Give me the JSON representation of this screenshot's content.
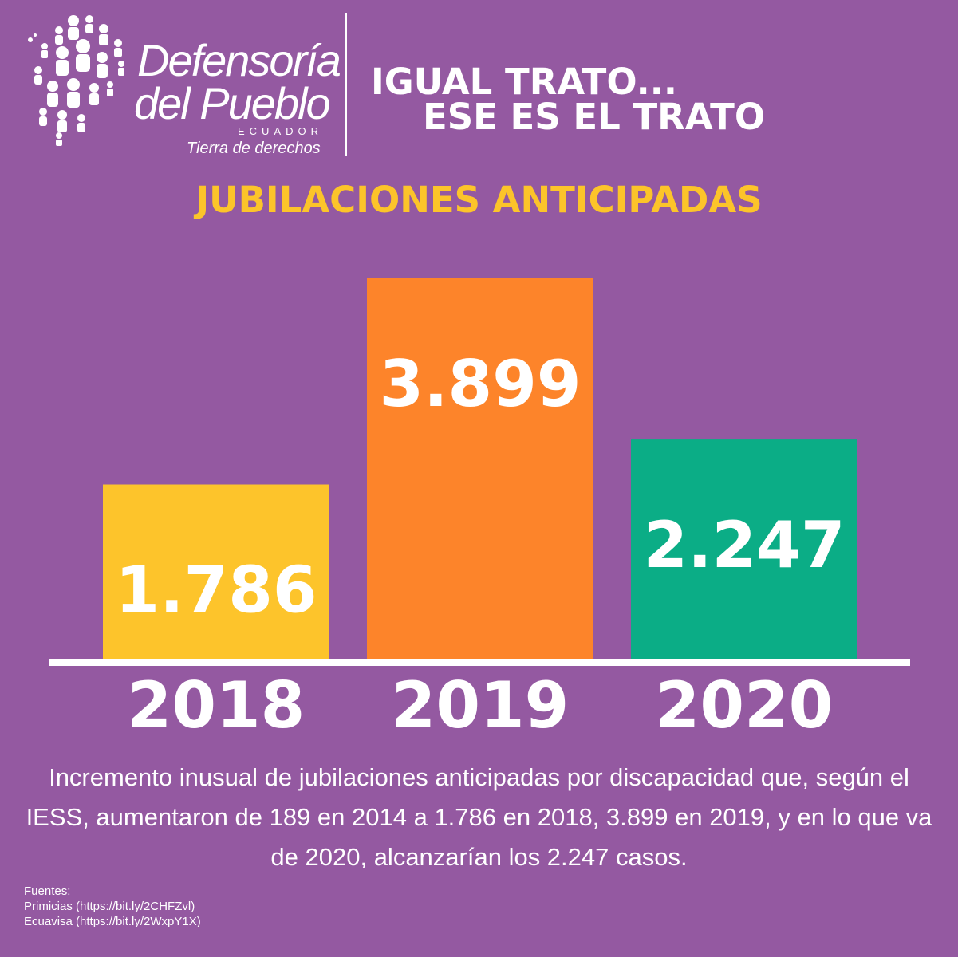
{
  "brand": {
    "name_line1": "Defensoría",
    "name_line2": "del Pueblo",
    "country": "ECUADOR",
    "tagline": "Tierra de derechos"
  },
  "slogan": {
    "line1": "IGUAL TRATO...",
    "line2": "ESE ES EL TRATO"
  },
  "title": "JUBILACIONES ANTICIPADAS",
  "chart_data": {
    "type": "bar",
    "categories": [
      "2018",
      "2019",
      "2020"
    ],
    "values": [
      1786,
      3899,
      2247
    ],
    "value_labels": [
      "1.786",
      "3.899",
      "2.247"
    ],
    "colors": [
      "#fdc42b",
      "#fd842a",
      "#0bad86"
    ],
    "ylim": [
      0,
      3899
    ],
    "grid": false
  },
  "description": "Incremento inusual de jubilaciones anticipadas por discapacidad que, según el IESS, aumentaron de 189 en 2014 a 1.786 en 2018, 3.899 en 2019, y en lo que va de 2020, alcanzarían los 2.247 casos.",
  "sources": {
    "heading": "Fuentes:",
    "items": [
      "Primicias (https://bit.ly/2CHFZvl)",
      "Ecuavisa (https://bit.ly/2WxpY1X)"
    ]
  },
  "colors": {
    "background": "#9459a1",
    "title": "#fcc42a",
    "text": "#ffffff"
  }
}
